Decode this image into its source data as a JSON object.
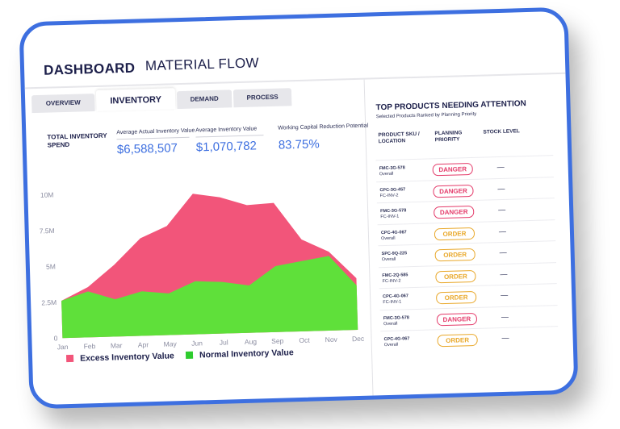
{
  "header": {
    "app_title": "DASHBOARD",
    "page_title": "MATERIAL FLOW"
  },
  "tabs": [
    {
      "label": "OVERVIEW",
      "active": false
    },
    {
      "label": "INVENTORY",
      "active": true
    },
    {
      "label": "DEMAND",
      "active": false
    },
    {
      "label": "PROCESS",
      "active": false
    }
  ],
  "kpis": {
    "main_label": "TOTAL INVENTORY SPEND",
    "items": [
      {
        "label": "Average Actual Inventory Value",
        "value": "$6,588,507"
      },
      {
        "label": "Average Inventory Value",
        "value": "$1,070,782"
      },
      {
        "label": "Working Capital Reduction Potential",
        "value": "83.75%"
      }
    ]
  },
  "chart_data": {
    "type": "area",
    "categories": [
      "Jan",
      "Feb",
      "Mar",
      "Apr",
      "May",
      "Jun",
      "Jul",
      "Aug",
      "Sep",
      "Oct",
      "Nov",
      "Dec"
    ],
    "y_tick_labels": [
      "10M",
      "7.5M",
      "5M",
      "2.5M",
      "0"
    ],
    "ylim": [
      0,
      10
    ],
    "series": [
      {
        "name": "Excess Inventory Value",
        "color": "#f2557a",
        "values": [
          2.6,
          3.5,
          5.0,
          6.8,
          7.6,
          9.8,
          9.5,
          8.9,
          9.0,
          6.4,
          5.5,
          3.6
        ]
      },
      {
        "name": "Normal Inventory Value",
        "color": "#5fe03a",
        "values": [
          2.6,
          3.2,
          2.6,
          3.1,
          2.9,
          3.7,
          3.6,
          3.3,
          4.6,
          4.9,
          5.2,
          3.1
        ]
      }
    ],
    "legend_position": "bottom"
  },
  "legend": {
    "excess_label": "Excess Inventory Value",
    "normal_label": "Normal Inventory Value",
    "excess_color": "#f2557a",
    "normal_color": "#2ecc2e"
  },
  "side_panel": {
    "title": "TOP PRODUCTS NEEDING ATTENTION",
    "subtitle": "Selected Products Ranked by Planning Priority",
    "columns": [
      "PRODUCT SKU / LOCATION",
      "PLANNING PRIORITY",
      "STOCK LEVEL"
    ],
    "rows": [
      {
        "sku": "FMC-3G-578",
        "location": "Overall",
        "priority": "DANGER",
        "stock": "—"
      },
      {
        "sku": "CPC-3G-457",
        "location": "FC-INV-2",
        "priority": "DANGER",
        "stock": "—"
      },
      {
        "sku": "FMC-3G-578",
        "location": "FC-INV-1",
        "priority": "DANGER",
        "stock": "—"
      },
      {
        "sku": "CPC-4G-067",
        "location": "Overall",
        "priority": "ORDER",
        "stock": "—"
      },
      {
        "sku": "SPC-9Q-225",
        "location": "Overall",
        "priority": "ORDER",
        "stock": "—"
      },
      {
        "sku": "FMC-2Q-585",
        "location": "FC-INV-2",
        "priority": "ORDER",
        "stock": "—"
      },
      {
        "sku": "CPC-4G-067",
        "location": "FC-INV-1",
        "priority": "ORDER",
        "stock": "—"
      },
      {
        "sku": "FMC-3G-578",
        "location": "Overall",
        "priority": "DANGER",
        "stock": "—"
      },
      {
        "sku": "CPC-4G-067",
        "location": "Overall",
        "priority": "ORDER",
        "stock": "—"
      }
    ]
  }
}
